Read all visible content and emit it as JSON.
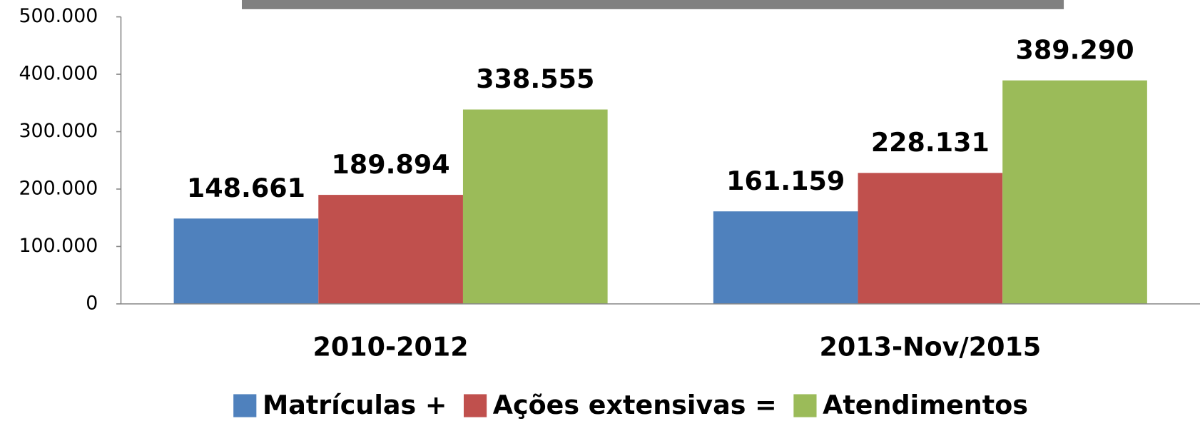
{
  "chart_data": {
    "type": "bar",
    "categories": [
      "2010-2012",
      "2013-Nov/2015"
    ],
    "series": [
      {
        "name": "Matrículas +",
        "color": "#4f81bd",
        "values": [
          148661,
          161159
        ],
        "value_labels": [
          "148.661",
          "161.159"
        ]
      },
      {
        "name": "Ações extensivas =",
        "color": "#c0504d",
        "values": [
          189894,
          228131
        ],
        "value_labels": [
          "189.894",
          "228.131"
        ]
      },
      {
        "name": "Atendimentos",
        "color": "#9bbb59",
        "values": [
          338555,
          389290
        ],
        "value_labels": [
          "338.555",
          "389.290"
        ]
      }
    ],
    "ylim": [
      0,
      500000
    ],
    "yticks": [
      {
        "value": 0,
        "label": "0"
      },
      {
        "value": 100000,
        "label": "100.000"
      },
      {
        "value": 200000,
        "label": "200.000"
      },
      {
        "value": 300000,
        "label": "300.000"
      },
      {
        "value": 400000,
        "label": "400.000"
      },
      {
        "value": 500000,
        "label": "500.000"
      }
    ],
    "grid": false,
    "legend": "bottom"
  }
}
